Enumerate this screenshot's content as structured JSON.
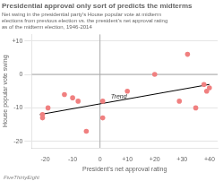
{
  "chart_data": {
    "type": "scatter",
    "title": "Presidential approval only sort of predicts the midterms",
    "subtitle": "Net swing in the presidential party's House popular vote at midterm\nelections from previous election vs. the president's net approval rating\nas of the midterm election, 1946-2014",
    "xlabel": "President's net approval rating",
    "ylabel": "House popular vote swing",
    "source": "FiveThirtyEight",
    "x": [
      -21,
      -21,
      -19,
      -13,
      -10,
      -8,
      -5,
      1,
      1,
      10,
      20,
      29,
      32,
      35,
      38,
      39,
      40
    ],
    "values": [
      -12,
      -13,
      -10,
      -6,
      -7,
      -8,
      -17,
      -13,
      -8,
      -5,
      0,
      -8,
      6,
      -10,
      -3,
      -5,
      -4
    ],
    "color": "#f08080",
    "trend": {
      "x": [
        -22,
        40
      ],
      "values": [
        -12,
        -3
      ]
    },
    "annotations": [
      {
        "text": "Trend",
        "x": 4,
        "y": -7.2
      }
    ],
    "reference_lines": {
      "x": [
        0
      ],
      "y": [
        0
      ]
    },
    "xlim": [
      -25,
      43
    ],
    "ylim": [
      -22,
      12
    ],
    "xticks": [
      -20,
      -10,
      0,
      {
        "value": 10,
        "label": "+10"
      },
      {
        "value": 20,
        "label": "+20"
      },
      {
        "value": 30,
        "label": "+30"
      },
      {
        "value": 40,
        "label": "+40"
      }
    ],
    "yticks": [
      -20,
      -10,
      0,
      {
        "value": 10,
        "label": "+10"
      }
    ],
    "grid": "y"
  }
}
